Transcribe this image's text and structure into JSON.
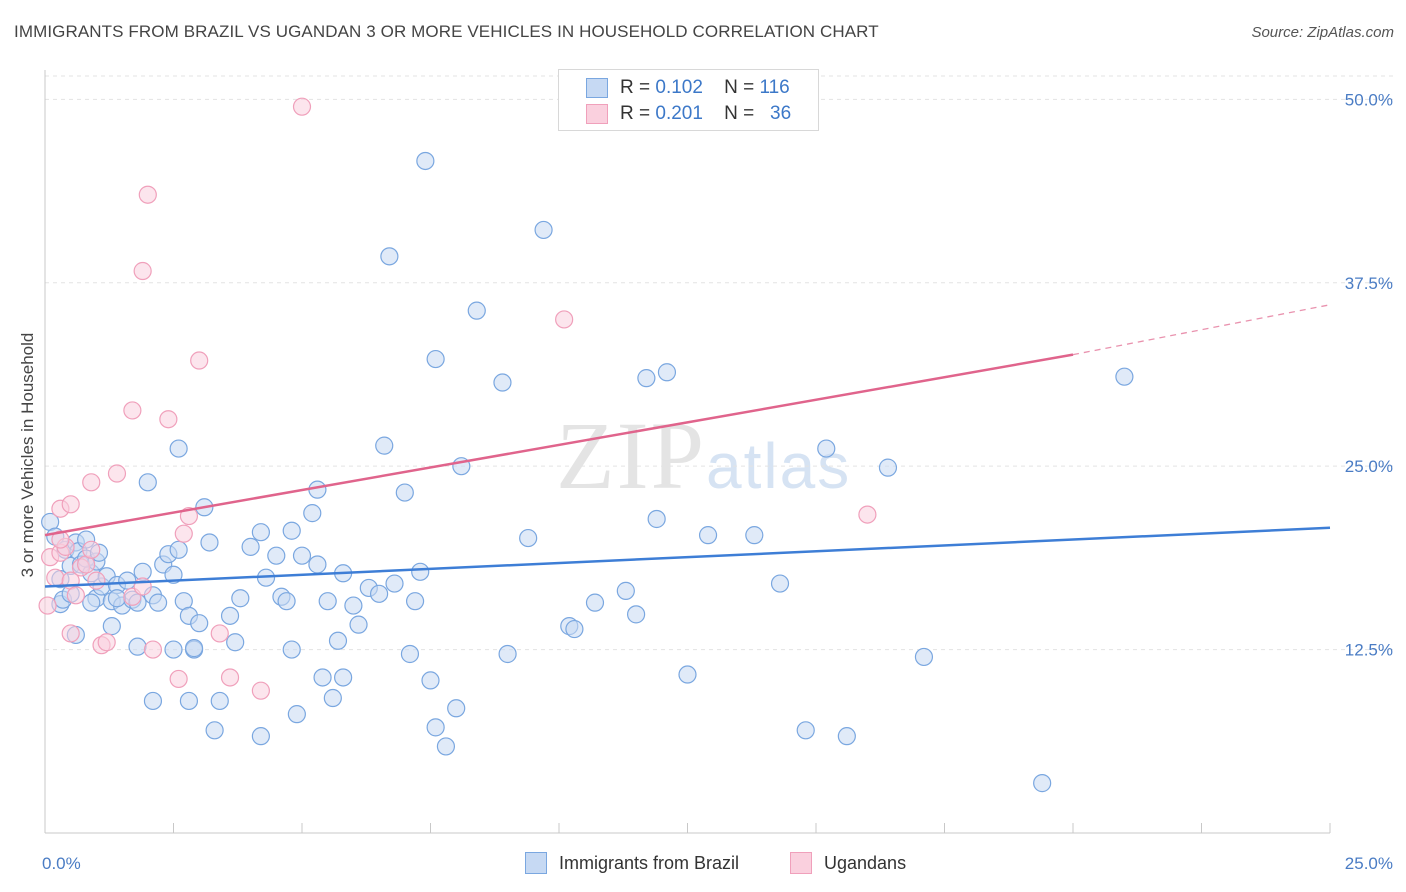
{
  "header": {
    "title": "IMMIGRANTS FROM BRAZIL VS UGANDAN 3 OR MORE VEHICLES IN HOUSEHOLD CORRELATION CHART",
    "source": "Source: ZipAtlas.com"
  },
  "watermark": {
    "zip": "ZIP",
    "atlas": "atlas"
  },
  "legend": {
    "rows": [
      {
        "r_label": "R =",
        "r_value": "0.102",
        "n_label": "N =",
        "n_value": "116",
        "color": "#7aa7e0",
        "fill": "#c6d9f3"
      },
      {
        "r_label": "R =",
        "r_value": "0.201",
        "n_label": "N =",
        "n_value": "36",
        "color": "#f0a0bb",
        "fill": "#fad0de"
      }
    ]
  },
  "bottom_legend": {
    "items": [
      {
        "label": "Immigrants from Brazil",
        "color": "#7aa7e0",
        "fill": "#c6d9f3"
      },
      {
        "label": "Ugandans",
        "color": "#f0a0bb",
        "fill": "#fad0de"
      }
    ]
  },
  "chart_data": {
    "type": "scatter",
    "title": "IMMIGRANTS FROM BRAZIL VS UGANDAN 3 OR MORE VEHICLES IN HOUSEHOLD CORRELATION CHART",
    "xlabel": "",
    "ylabel": "3 or more Vehicles in Household",
    "xlim": [
      0,
      25
    ],
    "ylim": [
      0,
      52
    ],
    "x_tick_labels": [
      "0.0%",
      "25.0%"
    ],
    "y_ticks": [
      12.5,
      25.0,
      37.5,
      50.0
    ],
    "y_tick_labels": [
      "12.5%",
      "25.0%",
      "37.5%",
      "50.0%"
    ],
    "grid": true,
    "legend_position": "top-center",
    "series": [
      {
        "name": "Immigrants from Brazil",
        "color": "#3e7ed6",
        "fill": "#c6d9f3",
        "stroke": "#7aa7e0",
        "trendline": {
          "x": [
            0,
            25
          ],
          "y": [
            16.8,
            20.8
          ]
        },
        "points": [
          [
            0.1,
            21.2
          ],
          [
            0.2,
            20.2
          ],
          [
            0.3,
            17.3
          ],
          [
            0.4,
            19.3
          ],
          [
            0.5,
            18.2
          ],
          [
            0.6,
            19.8
          ],
          [
            0.65,
            19.2
          ],
          [
            0.7,
            18.3
          ],
          [
            0.8,
            20.0
          ],
          [
            0.9,
            17.7
          ],
          [
            1.0,
            16.0
          ],
          [
            1.1,
            16.8
          ],
          [
            1.2,
            17.5
          ],
          [
            1.3,
            15.8
          ],
          [
            1.4,
            16.9
          ],
          [
            1.5,
            15.5
          ],
          [
            1.6,
            17.2
          ],
          [
            1.7,
            15.9
          ],
          [
            1.8,
            15.7
          ],
          [
            1.9,
            17.8
          ],
          [
            0.3,
            15.6
          ],
          [
            0.35,
            15.9
          ],
          [
            0.5,
            16.3
          ],
          [
            0.6,
            13.5
          ],
          [
            0.8,
            18.7
          ],
          [
            0.9,
            15.7
          ],
          [
            1.0,
            18.5
          ],
          [
            1.05,
            19.1
          ],
          [
            1.3,
            14.1
          ],
          [
            1.4,
            16.0
          ],
          [
            2.1,
            16.2
          ],
          [
            2.2,
            15.7
          ],
          [
            2.3,
            18.3
          ],
          [
            2.4,
            19.0
          ],
          [
            2.5,
            17.6
          ],
          [
            2.6,
            19.3
          ],
          [
            2.7,
            15.8
          ],
          [
            2.8,
            14.8
          ],
          [
            2.9,
            12.5
          ],
          [
            3.0,
            14.3
          ],
          [
            2.0,
            23.9
          ],
          [
            3.7,
            13.0
          ],
          [
            3.1,
            22.2
          ],
          [
            3.2,
            19.8
          ],
          [
            3.6,
            14.8
          ],
          [
            3.8,
            16.0
          ],
          [
            4.0,
            19.5
          ],
          [
            4.2,
            20.5
          ],
          [
            4.3,
            17.4
          ],
          [
            4.5,
            18.9
          ],
          [
            4.6,
            16.1
          ],
          [
            4.7,
            15.8
          ],
          [
            4.8,
            20.6
          ],
          [
            5.0,
            18.9
          ],
          [
            2.6,
            26.2
          ],
          [
            5.2,
            21.8
          ],
          [
            5.3,
            23.4
          ],
          [
            5.5,
            15.8
          ],
          [
            5.7,
            13.1
          ],
          [
            5.8,
            17.7
          ],
          [
            6.0,
            15.5
          ],
          [
            6.1,
            14.2
          ],
          [
            6.3,
            16.7
          ],
          [
            6.5,
            16.3
          ],
          [
            6.6,
            26.4
          ],
          [
            7.0,
            23.2
          ],
          [
            2.5,
            12.5
          ],
          [
            4.8,
            12.5
          ],
          [
            7.3,
            17.8
          ],
          [
            7.5,
            10.4
          ],
          [
            1.8,
            12.7
          ],
          [
            2.8,
            9.0
          ],
          [
            3.4,
            9.0
          ],
          [
            3.3,
            7.0
          ],
          [
            2.1,
            9.0
          ],
          [
            2.9,
            12.6
          ],
          [
            4.2,
            6.6
          ],
          [
            4.9,
            8.1
          ],
          [
            5.4,
            10.6
          ],
          [
            5.8,
            10.6
          ],
          [
            5.6,
            9.2
          ],
          [
            7.6,
            7.2
          ],
          [
            7.8,
            5.9
          ],
          [
            7.2,
            15.8
          ],
          [
            8.0,
            8.5
          ],
          [
            8.1,
            25.0
          ],
          [
            7.6,
            32.3
          ],
          [
            8.4,
            35.6
          ],
          [
            8.9,
            30.7
          ],
          [
            9.0,
            12.2
          ],
          [
            9.4,
            20.1
          ],
          [
            10.2,
            14.1
          ],
          [
            10.3,
            13.9
          ],
          [
            10.7,
            15.7
          ],
          [
            11.3,
            16.5
          ],
          [
            11.5,
            14.9
          ],
          [
            11.7,
            31.0
          ],
          [
            12.1,
            31.4
          ],
          [
            11.9,
            21.4
          ],
          [
            12.5,
            10.8
          ],
          [
            12.9,
            20.3
          ],
          [
            13.8,
            20.3
          ],
          [
            14.3,
            17.0
          ],
          [
            14.8,
            7.0
          ],
          [
            15.2,
            26.2
          ],
          [
            15.6,
            6.6
          ],
          [
            16.4,
            24.9
          ],
          [
            17.1,
            12.0
          ],
          [
            19.4,
            3.4
          ],
          [
            21.0,
            31.1
          ],
          [
            7.4,
            45.8
          ],
          [
            9.7,
            41.1
          ],
          [
            6.7,
            39.3
          ],
          [
            6.8,
            17.0
          ],
          [
            7.1,
            12.2
          ],
          [
            5.3,
            18.3
          ]
        ]
      },
      {
        "name": "Ugandans",
        "color": "#e0648c",
        "fill": "#fad0de",
        "stroke": "#f0a0bb",
        "trendline": {
          "x": [
            0,
            20
          ],
          "y": [
            20.3,
            32.6
          ],
          "dashed_to": [
            25,
            36.0
          ]
        },
        "points": [
          [
            0.05,
            15.5
          ],
          [
            0.1,
            18.8
          ],
          [
            0.2,
            17.4
          ],
          [
            0.3,
            19.1
          ],
          [
            0.4,
            19.5
          ],
          [
            0.5,
            17.2
          ],
          [
            0.6,
            16.2
          ],
          [
            0.7,
            18.1
          ],
          [
            0.8,
            18.3
          ],
          [
            0.9,
            19.3
          ],
          [
            0.3,
            22.1
          ],
          [
            0.5,
            22.4
          ],
          [
            1.0,
            17.2
          ],
          [
            0.3,
            20.0
          ],
          [
            0.5,
            13.6
          ],
          [
            1.1,
            12.8
          ],
          [
            1.2,
            13.0
          ],
          [
            0.9,
            23.9
          ],
          [
            1.4,
            24.5
          ],
          [
            1.7,
            16.1
          ],
          [
            1.9,
            16.8
          ],
          [
            2.1,
            12.5
          ],
          [
            1.7,
            28.8
          ],
          [
            2.4,
            28.2
          ],
          [
            2.6,
            10.5
          ],
          [
            2.7,
            20.4
          ],
          [
            2.8,
            21.6
          ],
          [
            3.0,
            32.2
          ],
          [
            3.4,
            13.6
          ],
          [
            3.6,
            10.6
          ],
          [
            4.2,
            9.7
          ],
          [
            10.1,
            35.0
          ],
          [
            16.0,
            21.7
          ],
          [
            2.0,
            43.5
          ],
          [
            1.9,
            38.3
          ],
          [
            5.0,
            49.5
          ]
        ]
      }
    ]
  }
}
